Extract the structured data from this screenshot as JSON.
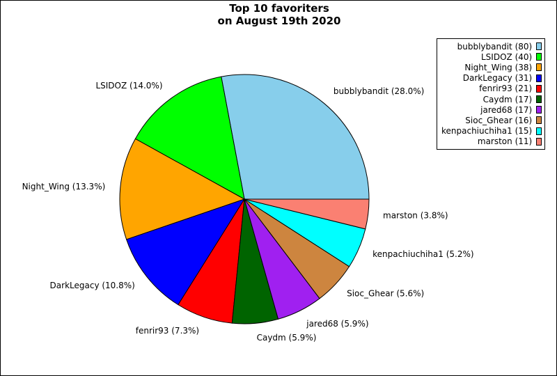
{
  "chart_data": {
    "type": "pie",
    "title_lines": [
      "Top 10 favoriters",
      "on August 19th 2020"
    ],
    "slices": [
      {
        "name": "bubblybandit",
        "value": 80,
        "percent_label": "bubblybandit (28.0%)",
        "legend_label": "bubblybandit (80)",
        "color": "#87ceeb"
      },
      {
        "name": "LSIDOZ",
        "value": 40,
        "percent_label": "LSIDOZ (14.0%)",
        "legend_label": "LSIDOZ (40)",
        "color": "#00ff00"
      },
      {
        "name": "Night_Wing",
        "value": 38,
        "percent_label": "Night_Wing (13.3%)",
        "legend_label": "Night_Wing (38)",
        "color": "#ffa500"
      },
      {
        "name": "DarkLegacy",
        "value": 31,
        "percent_label": "DarkLegacy (10.8%)",
        "legend_label": "DarkLegacy (31)",
        "color": "#0000ff"
      },
      {
        "name": "fenrir93",
        "value": 21,
        "percent_label": "fenrir93 (7.3%)",
        "legend_label": "fenrir93 (21)",
        "color": "#ff0000"
      },
      {
        "name": "Caydm",
        "value": 17,
        "percent_label": "Caydm (5.9%)",
        "legend_label": "Caydm (17)",
        "color": "#006400"
      },
      {
        "name": "jared68",
        "value": 17,
        "percent_label": "jared68 (5.9%)",
        "legend_label": "jared68 (17)",
        "color": "#a020f0"
      },
      {
        "name": "Sioc_Ghear",
        "value": 16,
        "percent_label": "Sioc_Ghear (5.6%)",
        "legend_label": "Sioc_Ghear (16)",
        "color": "#cd853f"
      },
      {
        "name": "kenpachiuchiha1",
        "value": 15,
        "percent_label": "kenpachiuchiha1 (5.2%)",
        "legend_label": "kenpachiuchiha1 (15)",
        "color": "#00ffff"
      },
      {
        "name": "marston",
        "value": 11,
        "percent_label": "marston (3.8%)",
        "legend_label": "marston (11)",
        "color": "#fa8072"
      }
    ],
    "start_angle": "3 o'clock",
    "direction": "counterclockwise",
    "legend_position": "top-right"
  }
}
